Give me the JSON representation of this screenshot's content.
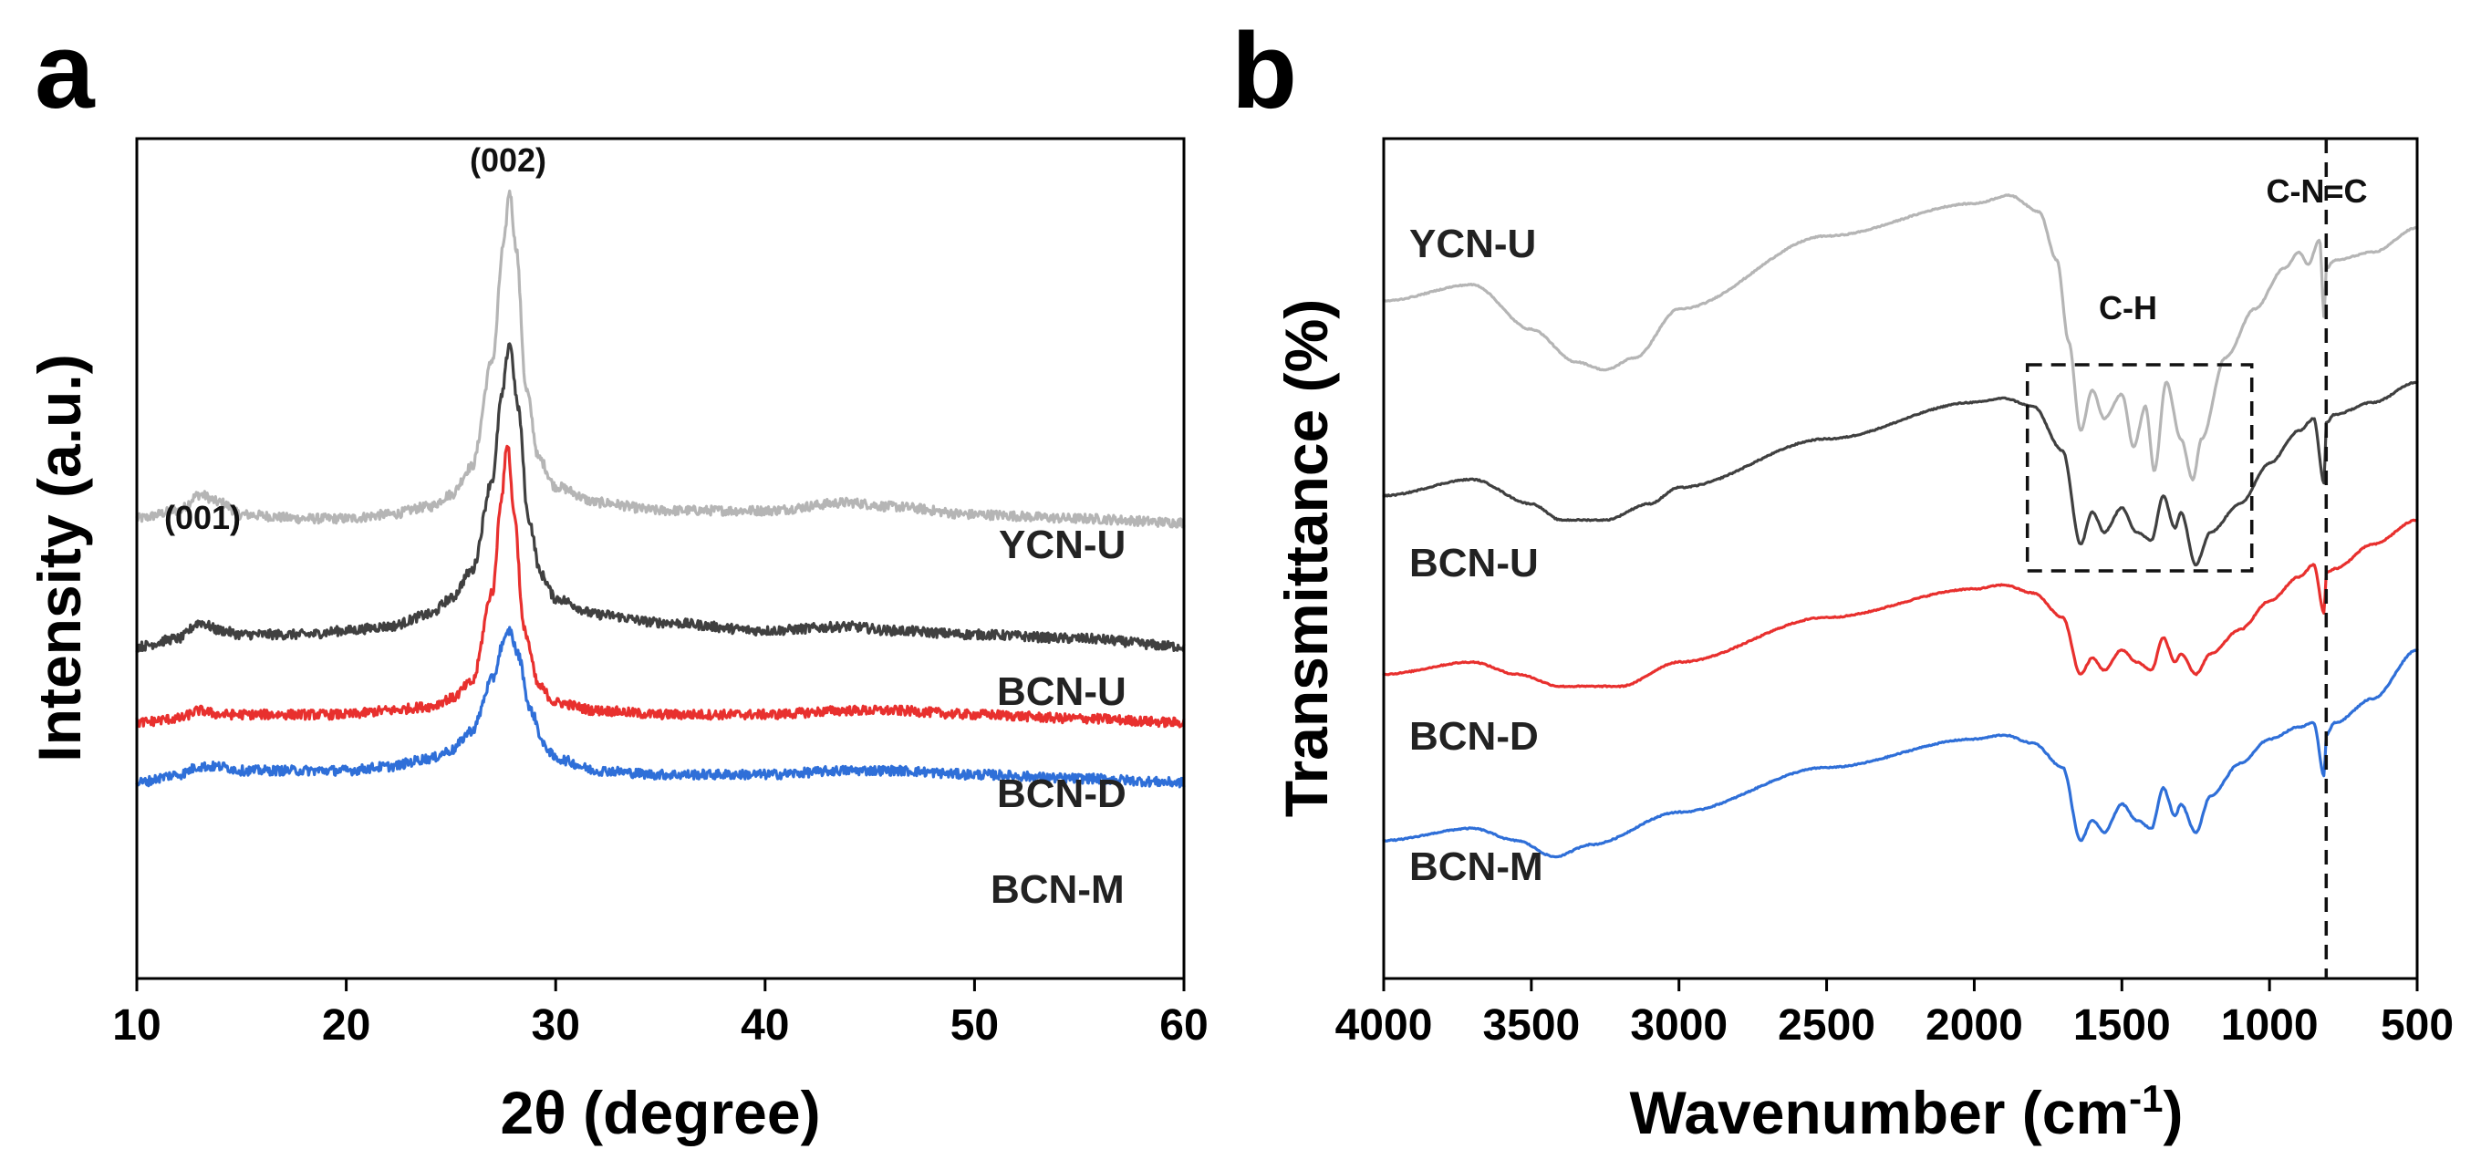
{
  "chart_data": [
    {
      "id": "xrd",
      "type": "line",
      "panel_label": "a",
      "xlabel": "2θ (degree)",
      "ylabel": "Intensity (a.u.)",
      "xlim": [
        10,
        60
      ],
      "xticks": [
        10,
        20,
        30,
        40,
        50,
        60
      ],
      "yticks_shown": false,
      "series": [
        {
          "name": "YCN-U",
          "color": "#b5b5b5",
          "points": [
            [
              10,
              0.8
            ],
            [
              12,
              0.82
            ],
            [
              13,
              0.86
            ],
            [
              14,
              0.84
            ],
            [
              15,
              0.81
            ],
            [
              18,
              0.8
            ],
            [
              20,
              0.8
            ],
            [
              22,
              0.81
            ],
            [
              24,
              0.83
            ],
            [
              25,
              0.86
            ],
            [
              26,
              0.93
            ],
            [
              27,
              1.2
            ],
            [
              27.5,
              1.48
            ],
            [
              27.8,
              1.62
            ],
            [
              28.1,
              1.48
            ],
            [
              28.6,
              1.12
            ],
            [
              29.2,
              0.95
            ],
            [
              30,
              0.88
            ],
            [
              32,
              0.84
            ],
            [
              35,
              0.82
            ],
            [
              40,
              0.82
            ],
            [
              44,
              0.84
            ],
            [
              46,
              0.83
            ],
            [
              50,
              0.81
            ],
            [
              55,
              0.8
            ],
            [
              60,
              0.79
            ]
          ]
        },
        {
          "name": "BCN-U",
          "color": "#404040",
          "points": [
            [
              10,
              0.48
            ],
            [
              12,
              0.5
            ],
            [
              13,
              0.54
            ],
            [
              14,
              0.52
            ],
            [
              15,
              0.51
            ],
            [
              18,
              0.51
            ],
            [
              20,
              0.52
            ],
            [
              22,
              0.53
            ],
            [
              24,
              0.56
            ],
            [
              25,
              0.6
            ],
            [
              26,
              0.67
            ],
            [
              27,
              0.9
            ],
            [
              27.4,
              1.1
            ],
            [
              27.8,
              1.24
            ],
            [
              28.2,
              1.08
            ],
            [
              28.7,
              0.8
            ],
            [
              29.3,
              0.66
            ],
            [
              30,
              0.6
            ],
            [
              32,
              0.56
            ],
            [
              35,
              0.54
            ],
            [
              40,
              0.52
            ],
            [
              44,
              0.53
            ],
            [
              46,
              0.52
            ],
            [
              50,
              0.51
            ],
            [
              55,
              0.5
            ],
            [
              60,
              0.48
            ]
          ]
        },
        {
          "name": "BCN-D",
          "color": "#e8302e",
          "points": [
            [
              10,
              0.29
            ],
            [
              12,
              0.3
            ],
            [
              13,
              0.32
            ],
            [
              14,
              0.31
            ],
            [
              15,
              0.31
            ],
            [
              18,
              0.31
            ],
            [
              20,
              0.31
            ],
            [
              22,
              0.32
            ],
            [
              24,
              0.33
            ],
            [
              25,
              0.35
            ],
            [
              26,
              0.39
            ],
            [
              27,
              0.62
            ],
            [
              27.4,
              0.85
            ],
            [
              27.7,
              0.99
            ],
            [
              28.0,
              0.82
            ],
            [
              28.5,
              0.52
            ],
            [
              29.2,
              0.38
            ],
            [
              30,
              0.34
            ],
            [
              32,
              0.32
            ],
            [
              35,
              0.31
            ],
            [
              40,
              0.31
            ],
            [
              44,
              0.32
            ],
            [
              46,
              0.32
            ],
            [
              50,
              0.31
            ],
            [
              55,
              0.3
            ],
            [
              60,
              0.29
            ]
          ]
        },
        {
          "name": "BCN-M",
          "color": "#2f6fd8",
          "points": [
            [
              10,
              0.14
            ],
            [
              12,
              0.16
            ],
            [
              13,
              0.18
            ],
            [
              14,
              0.18
            ],
            [
              15,
              0.17
            ],
            [
              18,
              0.17
            ],
            [
              20,
              0.17
            ],
            [
              22,
              0.18
            ],
            [
              24,
              0.2
            ],
            [
              25,
              0.22
            ],
            [
              26,
              0.27
            ],
            [
              27,
              0.4
            ],
            [
              27.5,
              0.49
            ],
            [
              27.8,
              0.52
            ],
            [
              28.2,
              0.46
            ],
            [
              28.8,
              0.32
            ],
            [
              29.5,
              0.23
            ],
            [
              30,
              0.2
            ],
            [
              32,
              0.17
            ],
            [
              35,
              0.16
            ],
            [
              40,
              0.16
            ],
            [
              44,
              0.17
            ],
            [
              46,
              0.17
            ],
            [
              50,
              0.16
            ],
            [
              55,
              0.15
            ],
            [
              60,
              0.14
            ]
          ]
        }
      ],
      "labels": [
        {
          "text": "YCN-U",
          "series": "YCN-U"
        },
        {
          "text": "BCN-U",
          "series": "BCN-U"
        },
        {
          "text": "BCN-D",
          "series": "BCN-D"
        },
        {
          "text": "BCN-M",
          "series": "BCN-M"
        }
      ],
      "annotations": [
        {
          "text": "(001)",
          "x": 13.0
        },
        {
          "text": "(002)",
          "x": 27.8
        }
      ]
    },
    {
      "id": "ftir",
      "type": "line",
      "panel_label": "b",
      "xlabel": "Wavenumber (cm",
      "xlabel_superscript": "-1",
      "xlabel_suffix": ")",
      "ylabel": "Transmittance (%)",
      "xlim": [
        4000,
        500
      ],
      "xticks": [
        4000,
        3500,
        3000,
        2500,
        2000,
        1500,
        1000,
        500
      ],
      "yticks_shown": false,
      "series": [
        {
          "name": "YCN-U",
          "color": "#b5b5b5",
          "points": [
            [
              4000,
              0.62
            ],
            [
              3700,
              0.66
            ],
            [
              3500,
              0.55
            ],
            [
              3350,
              0.47
            ],
            [
              3250,
              0.45
            ],
            [
              3150,
              0.48
            ],
            [
              3000,
              0.6
            ],
            [
              2500,
              0.78
            ],
            [
              2000,
              0.86
            ],
            [
              1880,
              0.88
            ],
            [
              1780,
              0.84
            ],
            [
              1720,
              0.72
            ],
            [
              1680,
              0.52
            ],
            [
              1640,
              0.3
            ],
            [
              1600,
              0.4
            ],
            [
              1560,
              0.33
            ],
            [
              1500,
              0.39
            ],
            [
              1460,
              0.26
            ],
            [
              1420,
              0.36
            ],
            [
              1390,
              0.2
            ],
            [
              1350,
              0.42
            ],
            [
              1300,
              0.28
            ],
            [
              1260,
              0.18
            ],
            [
              1230,
              0.28
            ],
            [
              1150,
              0.48
            ],
            [
              1050,
              0.6
            ],
            [
              950,
              0.7
            ],
            [
              900,
              0.74
            ],
            [
              870,
              0.71
            ],
            [
              830,
              0.77
            ],
            [
              815,
              0.58
            ],
            [
              808,
              0.7
            ],
            [
              780,
              0.72
            ],
            [
              650,
              0.74
            ],
            [
              500,
              0.8
            ]
          ]
        },
        {
          "name": "BCN-U",
          "color": "#404040",
          "points": [
            [
              4000,
              0.14
            ],
            [
              3700,
              0.18
            ],
            [
              3500,
              0.12
            ],
            [
              3400,
              0.08
            ],
            [
              3250,
              0.08
            ],
            [
              3100,
              0.12
            ],
            [
              3000,
              0.16
            ],
            [
              2500,
              0.28
            ],
            [
              2000,
              0.37
            ],
            [
              1900,
              0.38
            ],
            [
              1800,
              0.36
            ],
            [
              1700,
              0.25
            ],
            [
              1640,
              0.02
            ],
            [
              1600,
              0.1
            ],
            [
              1560,
              0.05
            ],
            [
              1500,
              0.11
            ],
            [
              1450,
              0.05
            ],
            [
              1400,
              0.03
            ],
            [
              1360,
              0.14
            ],
            [
              1320,
              0.06
            ],
            [
              1300,
              0.1
            ],
            [
              1250,
              -0.03
            ],
            [
              1200,
              0.05
            ],
            [
              1100,
              0.12
            ],
            [
              1000,
              0.22
            ],
            [
              900,
              0.3
            ],
            [
              850,
              0.33
            ],
            [
              815,
              0.17
            ],
            [
              808,
              0.32
            ],
            [
              780,
              0.34
            ],
            [
              650,
              0.37
            ],
            [
              500,
              0.42
            ]
          ]
        },
        {
          "name": "BCN-D",
          "color": "#e8302e",
          "points": [
            [
              4000,
              -0.3
            ],
            [
              3700,
              -0.27
            ],
            [
              3550,
              -0.3
            ],
            [
              3400,
              -0.33
            ],
            [
              3200,
              -0.33
            ],
            [
              3000,
              -0.27
            ],
            [
              2500,
              -0.16
            ],
            [
              2000,
              -0.09
            ],
            [
              1900,
              -0.08
            ],
            [
              1800,
              -0.1
            ],
            [
              1700,
              -0.16
            ],
            [
              1640,
              -0.3
            ],
            [
              1600,
              -0.26
            ],
            [
              1560,
              -0.29
            ],
            [
              1500,
              -0.24
            ],
            [
              1450,
              -0.27
            ],
            [
              1400,
              -0.29
            ],
            [
              1360,
              -0.21
            ],
            [
              1320,
              -0.27
            ],
            [
              1300,
              -0.25
            ],
            [
              1250,
              -0.3
            ],
            [
              1200,
              -0.25
            ],
            [
              1100,
              -0.19
            ],
            [
              1000,
              -0.12
            ],
            [
              900,
              -0.06
            ],
            [
              850,
              -0.03
            ],
            [
              815,
              -0.15
            ],
            [
              808,
              -0.05
            ],
            [
              780,
              -0.04
            ],
            [
              650,
              0.02
            ],
            [
              500,
              0.08
            ]
          ]
        },
        {
          "name": "BCN-M",
          "color": "#2f6fd8",
          "points": [
            [
              4000,
              -0.71
            ],
            [
              3700,
              -0.68
            ],
            [
              3550,
              -0.71
            ],
            [
              3420,
              -0.75
            ],
            [
              3300,
              -0.72
            ],
            [
              3000,
              -0.64
            ],
            [
              2500,
              -0.53
            ],
            [
              2000,
              -0.46
            ],
            [
              1900,
              -0.45
            ],
            [
              1800,
              -0.47
            ],
            [
              1700,
              -0.53
            ],
            [
              1640,
              -0.71
            ],
            [
              1600,
              -0.66
            ],
            [
              1560,
              -0.69
            ],
            [
              1500,
              -0.62
            ],
            [
              1450,
              -0.66
            ],
            [
              1400,
              -0.68
            ],
            [
              1360,
              -0.58
            ],
            [
              1320,
              -0.65
            ],
            [
              1300,
              -0.62
            ],
            [
              1250,
              -0.69
            ],
            [
              1200,
              -0.6
            ],
            [
              1100,
              -0.52
            ],
            [
              1000,
              -0.46
            ],
            [
              900,
              -0.43
            ],
            [
              850,
              -0.42
            ],
            [
              815,
              -0.55
            ],
            [
              808,
              -0.45
            ],
            [
              780,
              -0.42
            ],
            [
              650,
              -0.36
            ],
            [
              500,
              -0.24
            ]
          ]
        }
      ],
      "labels": [
        {
          "text": "YCN-U",
          "series": "YCN-U"
        },
        {
          "text": "BCN-U",
          "series": "BCN-U"
        },
        {
          "text": "BCN-D",
          "series": "BCN-D"
        },
        {
          "text": "BCN-M",
          "series": "BCN-M"
        }
      ],
      "annotations": [
        {
          "text": "C-H",
          "x": 1470
        },
        {
          "text": "C-N=C",
          "x": 850
        }
      ],
      "box": {
        "x_range": [
          1820,
          1060
        ],
        "style": "dashed"
      },
      "vline": {
        "x": 808,
        "style": "dashed"
      }
    }
  ]
}
